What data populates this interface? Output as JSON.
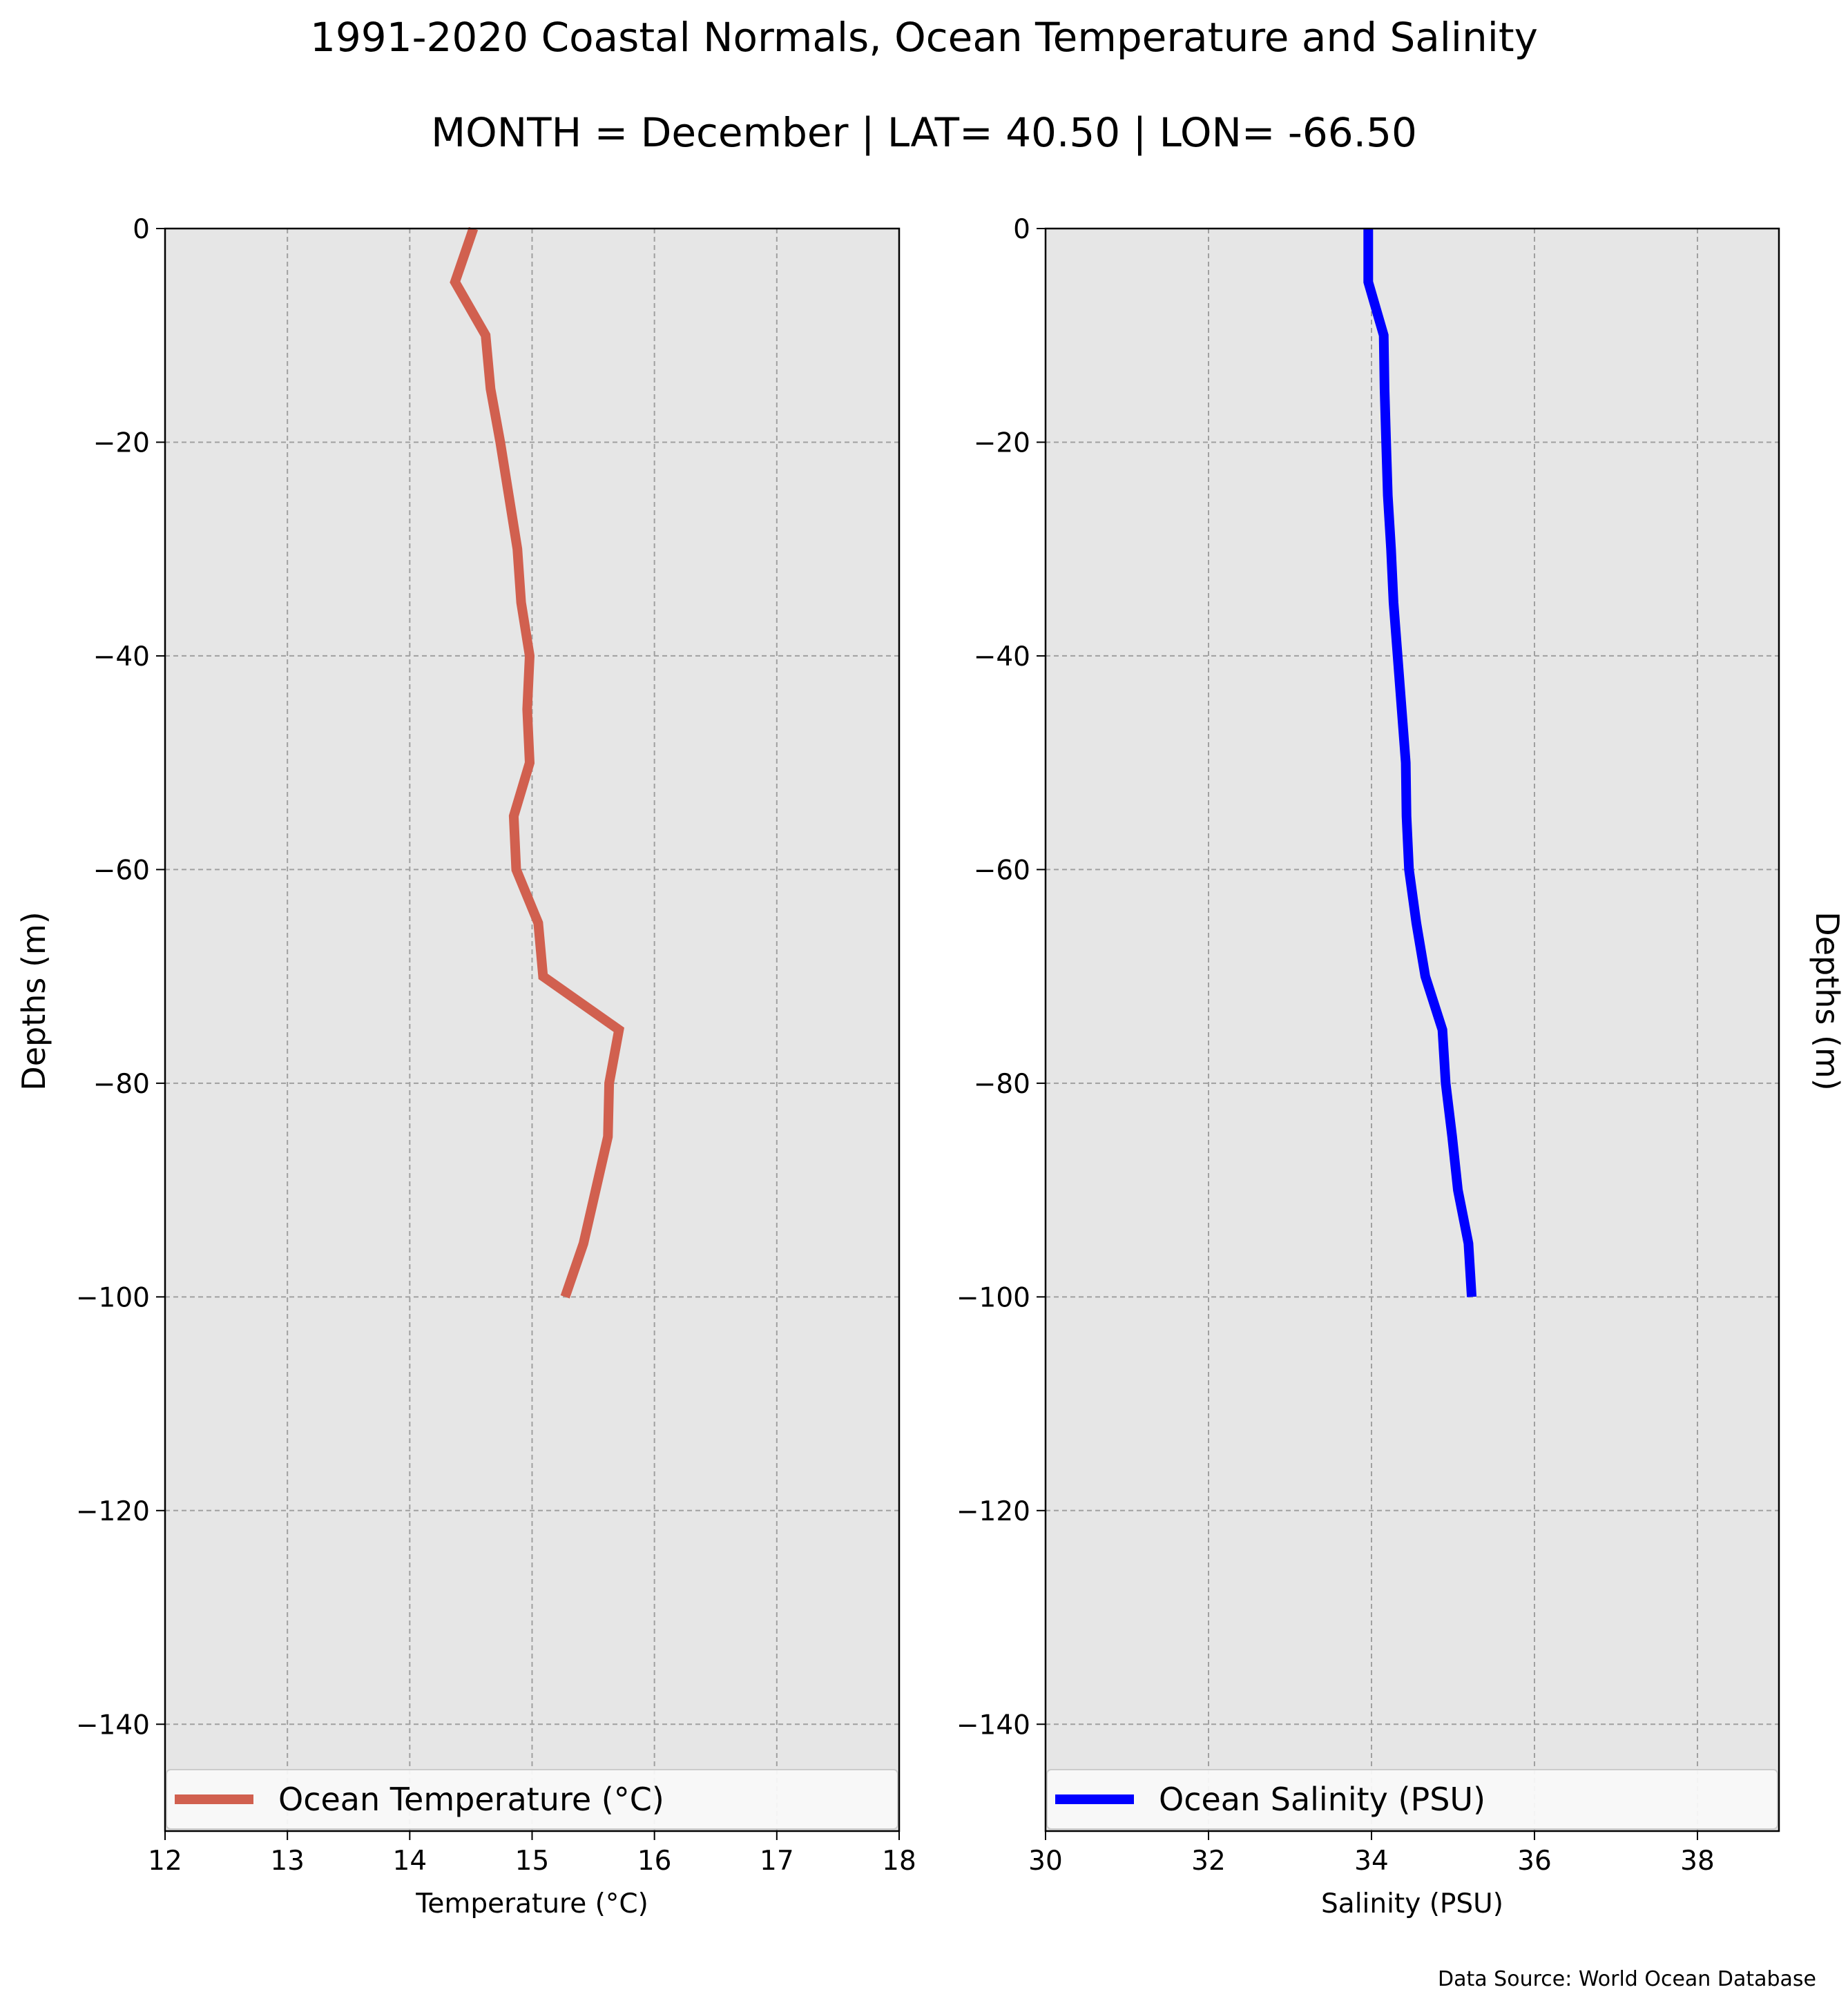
{
  "figure": {
    "title": "1991-2020 Coastal Normals, Ocean Temperature and Salinity",
    "subtitle": "MONTH = December | LAT= 40.50 | LON= -66.50",
    "source": "Data Source: World Ocean Database"
  },
  "colors": {
    "background": "#ffffff",
    "plot_background": "#e6e6e6",
    "grid": "#a0a0a0",
    "temperature_line": "#d1604f",
    "salinity_line": "#0000ff"
  },
  "chart_data": [
    {
      "type": "line",
      "orientation": "profile",
      "xlabel": "Temperature (°C)",
      "ylabel": "Depths (m)",
      "xlim": [
        12,
        18
      ],
      "ylim": [
        -150,
        0
      ],
      "xticks": [
        "12",
        "13",
        "14",
        "15",
        "16",
        "17",
        "18"
      ],
      "yticks": [
        "0",
        "−20",
        "−40",
        "−60",
        "−80",
        "−100",
        "−120",
        "−140"
      ],
      "grid": true,
      "legend_position": "bottom",
      "series": [
        {
          "name": "Ocean Temperature (°C)",
          "x": [
            14.52,
            14.37,
            14.62,
            14.66,
            14.74,
            14.81,
            14.88,
            14.91,
            14.98,
            14.96,
            14.98,
            14.85,
            14.87,
            15.05,
            15.09,
            15.71,
            15.63,
            15.62,
            15.52,
            15.42,
            15.27
          ],
          "y": [
            0,
            -5,
            -10,
            -15,
            -20,
            -25,
            -30,
            -35,
            -40,
            -45,
            -50,
            -55,
            -60,
            -65,
            -70,
            -75,
            -80,
            -85,
            -90,
            -95,
            -100
          ]
        }
      ]
    },
    {
      "type": "line",
      "orientation": "profile",
      "xlabel": "Salinity (PSU)",
      "ylabel": "Depths (m)",
      "xlim": [
        30,
        39
      ],
      "ylim": [
        -150,
        0
      ],
      "xticks": [
        "30",
        "32",
        "34",
        "36",
        "38"
      ],
      "yticks": [
        "0",
        "−20",
        "−40",
        "−60",
        "−80",
        "−100",
        "−120",
        "−140"
      ],
      "grid": true,
      "legend_position": "bottom",
      "series": [
        {
          "name": "Ocean Salinity (PSU)",
          "x": [
            33.96,
            33.96,
            34.15,
            34.16,
            34.18,
            34.2,
            34.24,
            34.27,
            34.32,
            34.37,
            34.42,
            34.43,
            34.46,
            34.55,
            34.66,
            34.87,
            34.91,
            34.99,
            35.06,
            35.19,
            35.23
          ],
          "y": [
            0,
            -5,
            -10,
            -15,
            -20,
            -25,
            -30,
            -35,
            -40,
            -45,
            -50,
            -55,
            -60,
            -65,
            -70,
            -75,
            -80,
            -85,
            -90,
            -95,
            -100
          ]
        }
      ]
    }
  ]
}
